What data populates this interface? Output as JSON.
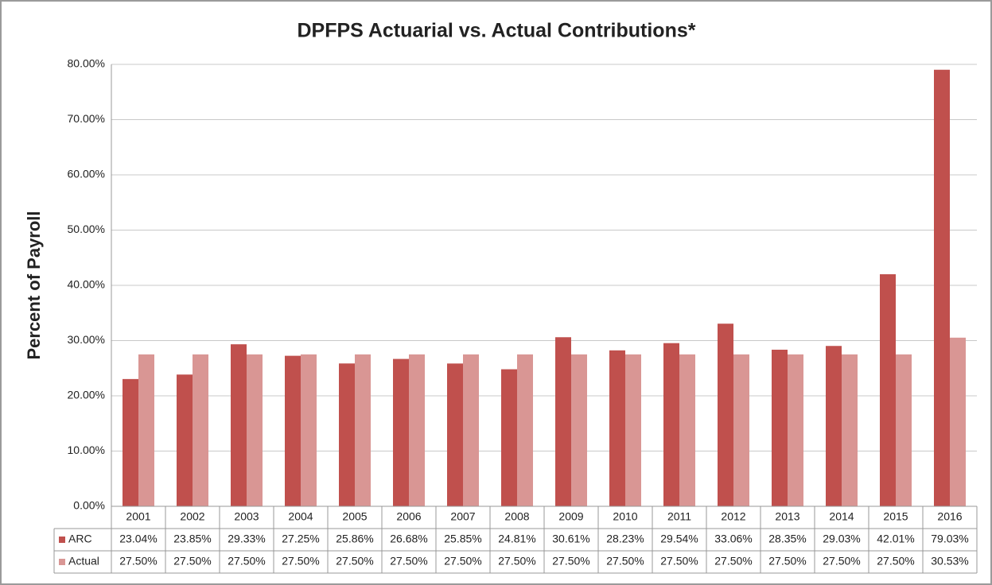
{
  "chart_data": {
    "type": "bar",
    "title": "DPFPS Actuarial vs. Actual Contributions*",
    "y_label": "Percent of Payroll",
    "categories": [
      "2001",
      "2002",
      "2003",
      "2004",
      "2005",
      "2006",
      "2007",
      "2008",
      "2009",
      "2010",
      "2011",
      "2012",
      "2013",
      "2014",
      "2015",
      "2016"
    ],
    "series": [
      {
        "name": "ARC",
        "color": "#c0504d",
        "values": [
          23.04,
          23.85,
          29.33,
          27.25,
          25.86,
          26.68,
          25.85,
          24.81,
          30.61,
          28.23,
          29.54,
          33.06,
          28.35,
          29.03,
          42.01,
          79.03
        ],
        "value_labels": [
          "23.04%",
          "23.85%",
          "29.33%",
          "27.25%",
          "25.86%",
          "26.68%",
          "25.85%",
          "24.81%",
          "30.61%",
          "28.23%",
          "29.54%",
          "33.06%",
          "28.35%",
          "29.03%",
          "42.01%",
          "79.03%"
        ]
      },
      {
        "name": "Actual",
        "color": "#d99694",
        "values": [
          27.5,
          27.5,
          27.5,
          27.5,
          27.5,
          27.5,
          27.5,
          27.5,
          27.5,
          27.5,
          27.5,
          27.5,
          27.5,
          27.5,
          27.5,
          30.53
        ],
        "value_labels": [
          "27.50%",
          "27.50%",
          "27.50%",
          "27.50%",
          "27.50%",
          "27.50%",
          "27.50%",
          "27.50%",
          "27.50%",
          "27.50%",
          "27.50%",
          "27.50%",
          "27.50%",
          "27.50%",
          "27.50%",
          "30.53%"
        ]
      }
    ],
    "ylim": [
      0,
      80
    ],
    "yticks": [
      {
        "value": 0,
        "label": "0.00%"
      },
      {
        "value": 10,
        "label": "10.00%"
      },
      {
        "value": 20,
        "label": "20.00%"
      },
      {
        "value": 30,
        "label": "30.00%"
      },
      {
        "value": 40,
        "label": "40.00%"
      },
      {
        "value": 50,
        "label": "50.00%"
      },
      {
        "value": 60,
        "label": "60.00%"
      },
      {
        "value": 70,
        "label": "70.00%"
      },
      {
        "value": 80,
        "label": "80.00%"
      }
    ],
    "grid": true
  }
}
